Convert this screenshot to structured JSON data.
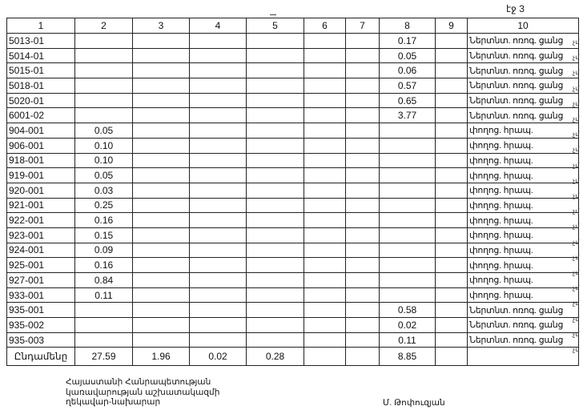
{
  "page_label": "էջ 3",
  "table": {
    "headers": [
      "1",
      "2",
      "3",
      "4",
      "5",
      "6",
      "7",
      "8",
      "9",
      "10"
    ],
    "rows": [
      {
        "code": "5013-01",
        "c2": "",
        "c8": "0.17",
        "c10": "Ներտնտ. ոռոգ. ցանց",
        "mark": "չմ"
      },
      {
        "code": "5014-01",
        "c2": "",
        "c8": "0.05",
        "c10": "Ներտնտ. ոռոգ. ցանց",
        "mark": "չմ"
      },
      {
        "code": "5015-01",
        "c2": "",
        "c8": "0.06",
        "c10": "Ներտնտ. ոռոգ. ցանց",
        "mark": "չմ"
      },
      {
        "code": "5018-01",
        "c2": "",
        "c8": "0.57",
        "c10": "Ներտնտ. ոռոգ. ցանց",
        "mark": "չմ"
      },
      {
        "code": "5020-01",
        "c2": "",
        "c8": "0.65",
        "c10": "Ներտնտ. ոռոգ. ցանց",
        "mark": "չմ"
      },
      {
        "code": "6001-02",
        "c2": "",
        "c8": "3.77",
        "c10": "Ներտնտ. ոռոգ. ցանց",
        "mark": "չմ"
      },
      {
        "code": "904-001",
        "c2": "0.05",
        "c8": "",
        "c10": "փողոց. հրապ.",
        "mark": "չմ"
      },
      {
        "code": "906-001",
        "c2": "0.10",
        "c8": "",
        "c10": "փողոց. հրապ.",
        "mark": "չմ"
      },
      {
        "code": "918-001",
        "c2": "0.10",
        "c8": "",
        "c10": "փողոց. հրապ.",
        "mark": "չմ"
      },
      {
        "code": "919-001",
        "c2": "0.05",
        "c8": "",
        "c10": "փողոց. հրապ.",
        "mark": "չմ"
      },
      {
        "code": "920-001",
        "c2": "0.03",
        "c8": "",
        "c10": "փողոց. հրապ.",
        "mark": "չմ"
      },
      {
        "code": "921-001",
        "c2": "0.25",
        "c8": "",
        "c10": "փողոց. հրապ.",
        "mark": "չմ"
      },
      {
        "code": "922-001",
        "c2": "0.16",
        "c8": "",
        "c10": "փողոց. հրապ.",
        "mark": "չմ"
      },
      {
        "code": "923-001",
        "c2": "0.15",
        "c8": "",
        "c10": "փողոց. հրապ.",
        "mark": "չմ"
      },
      {
        "code": "924-001",
        "c2": "0.09",
        "c8": "",
        "c10": "փողոց. հրապ.",
        "mark": "չմ"
      },
      {
        "code": "925-001",
        "c2": "0.16",
        "c8": "",
        "c10": "փողոց. հրապ.",
        "mark": "չմ"
      },
      {
        "code": "927-001",
        "c2": "0.84",
        "c8": "",
        "c10": "փողոց. հրապ.",
        "mark": "չմ"
      },
      {
        "code": "933-001",
        "c2": "0.11",
        "c8": "",
        "c10": "փողոց. հրապ.",
        "mark": "չմ"
      },
      {
        "code": "935-001",
        "c2": "",
        "c8": "0.58",
        "c10": "Ներտնտ. ոռոգ. ցանց",
        "mark": "չմ"
      },
      {
        "code": "935-002",
        "c2": "",
        "c8": "0.02",
        "c10": "Ներտնտ. ոռոգ. ցանց",
        "mark": "չմ"
      },
      {
        "code": "935-003",
        "c2": "",
        "c8": "0.11",
        "c10": "Ներտնտ. ոռոգ. ցանց",
        "mark": "չմ"
      }
    ],
    "total": {
      "label": "Ընդամենը",
      "c2": "27.59",
      "c3": "1.96",
      "c4": "0.02",
      "c5": "0.28",
      "c6": "",
      "c7": "",
      "c8": "8.85",
      "c9": "",
      "c10": ""
    }
  },
  "signature": {
    "title_lines": [
      "Հայաստանի Հանրապետության",
      "կառավարության աշխատակազմի",
      "ղեկավար-նախարար"
    ],
    "name": "Մ. Թոփուզյան"
  }
}
